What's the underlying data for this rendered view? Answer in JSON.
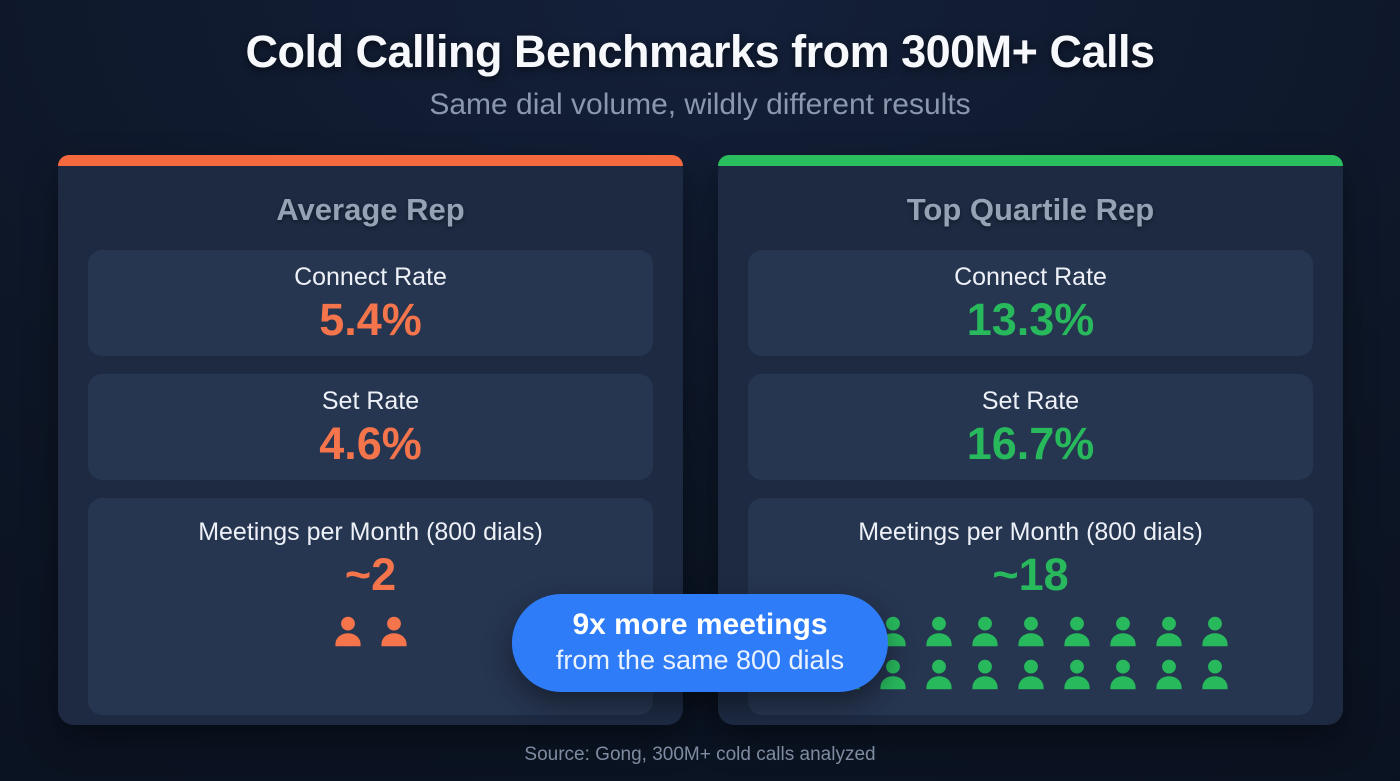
{
  "page": {
    "title": "Cold Calling Benchmarks from 300M+ Calls",
    "subtitle": "Same dial volume, wildly different results",
    "source": "Source: Gong, 300M+ cold calls analyzed"
  },
  "badge": {
    "line1": "9x more meetings",
    "line2": "from the same 800 dials"
  },
  "cards": [
    {
      "title": "Average Rep",
      "accent_color": "#F46A3E",
      "value_color": "#F4744C",
      "stats": [
        {
          "label": "Connect Rate",
          "value": "5.4%"
        },
        {
          "label": "Set Rate",
          "value": "4.6%"
        },
        {
          "label": "Meetings per Month (800 dials)",
          "value": "~2",
          "person_icons": 2
        }
      ]
    },
    {
      "title": "Top Quartile Rep",
      "accent_color": "#2BBE5F",
      "value_color": "#28B95D",
      "stats": [
        {
          "label": "Connect Rate",
          "value": "13.3%"
        },
        {
          "label": "Set Rate",
          "value": "16.7%"
        },
        {
          "label": "Meetings per Month (800 dials)",
          "value": "~18",
          "person_icons": 18
        }
      ]
    }
  ],
  "colors": {
    "background": "#0D1626",
    "card": "#1D2A42",
    "stat_box": "#263550",
    "badge_blue": "#2E7CF7",
    "orange": "#F4744C",
    "green": "#28B95D"
  },
  "chart_data": {
    "type": "table",
    "title": "Cold Calling Benchmarks from 300M+ Calls",
    "subtitle": "Same dial volume, wildly different results",
    "categories": [
      "Connect Rate",
      "Set Rate",
      "Meetings per Month (800 dials)"
    ],
    "series": [
      {
        "name": "Average Rep",
        "values": [
          5.4,
          4.6,
          2
        ],
        "value_labels": [
          "5.4%",
          "4.6%",
          "~2"
        ]
      },
      {
        "name": "Top Quartile Rep",
        "values": [
          13.3,
          16.7,
          18
        ],
        "value_labels": [
          "13.3%",
          "16.7%",
          "~18"
        ]
      }
    ],
    "annotation": "9x more meetings from the same 800 dials",
    "source": "Source: Gong, 300M+ cold calls analyzed",
    "legend_position": "card headers",
    "grid": false
  }
}
